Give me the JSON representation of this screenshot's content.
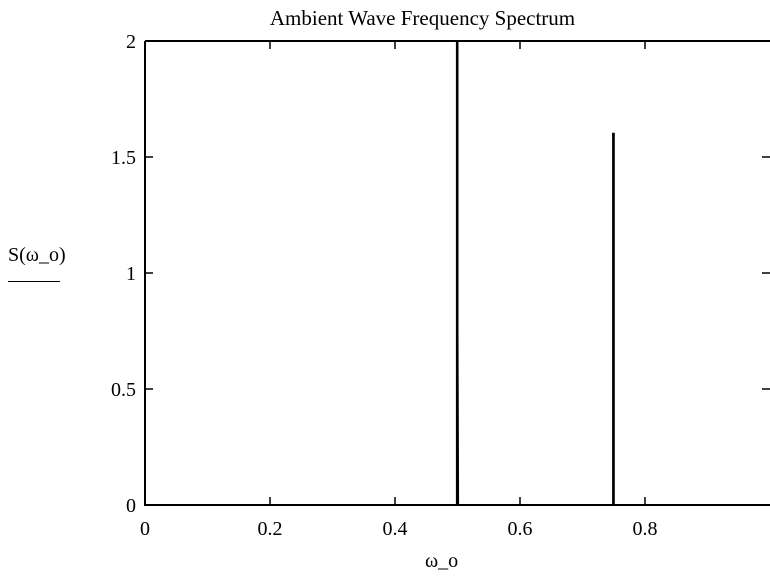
{
  "chart_data": {
    "type": "line",
    "title": "Ambient Wave Frequency Spectrum",
    "xlabel": "ω_o",
    "ylabel": "S(ω_o)",
    "xlim": [
      0,
      1
    ],
    "ylim": [
      0,
      2
    ],
    "x_ticks": [
      0,
      0.2,
      0.4,
      0.6,
      0.8
    ],
    "x_tick_labels": [
      "0",
      "0.2",
      "0.4",
      "0.6",
      "0.8"
    ],
    "y_ticks": [
      0,
      0.5,
      1,
      1.5,
      2
    ],
    "y_tick_labels": [
      "0",
      "0.5",
      "1",
      "1.5",
      "2"
    ],
    "grid": false,
    "series": [
      {
        "x": [
          0,
          0,
          0.001,
          0.499,
          0.499,
          0.5,
          0.5,
          0.501,
          0.749,
          0.749,
          0.75,
          0.75,
          0.751,
          1
        ],
        "y": [
          0.75,
          0,
          0,
          0,
          2.0,
          2.0,
          0.75,
          0,
          0,
          1.6,
          1.6,
          0,
          0,
          0
        ]
      }
    ]
  }
}
